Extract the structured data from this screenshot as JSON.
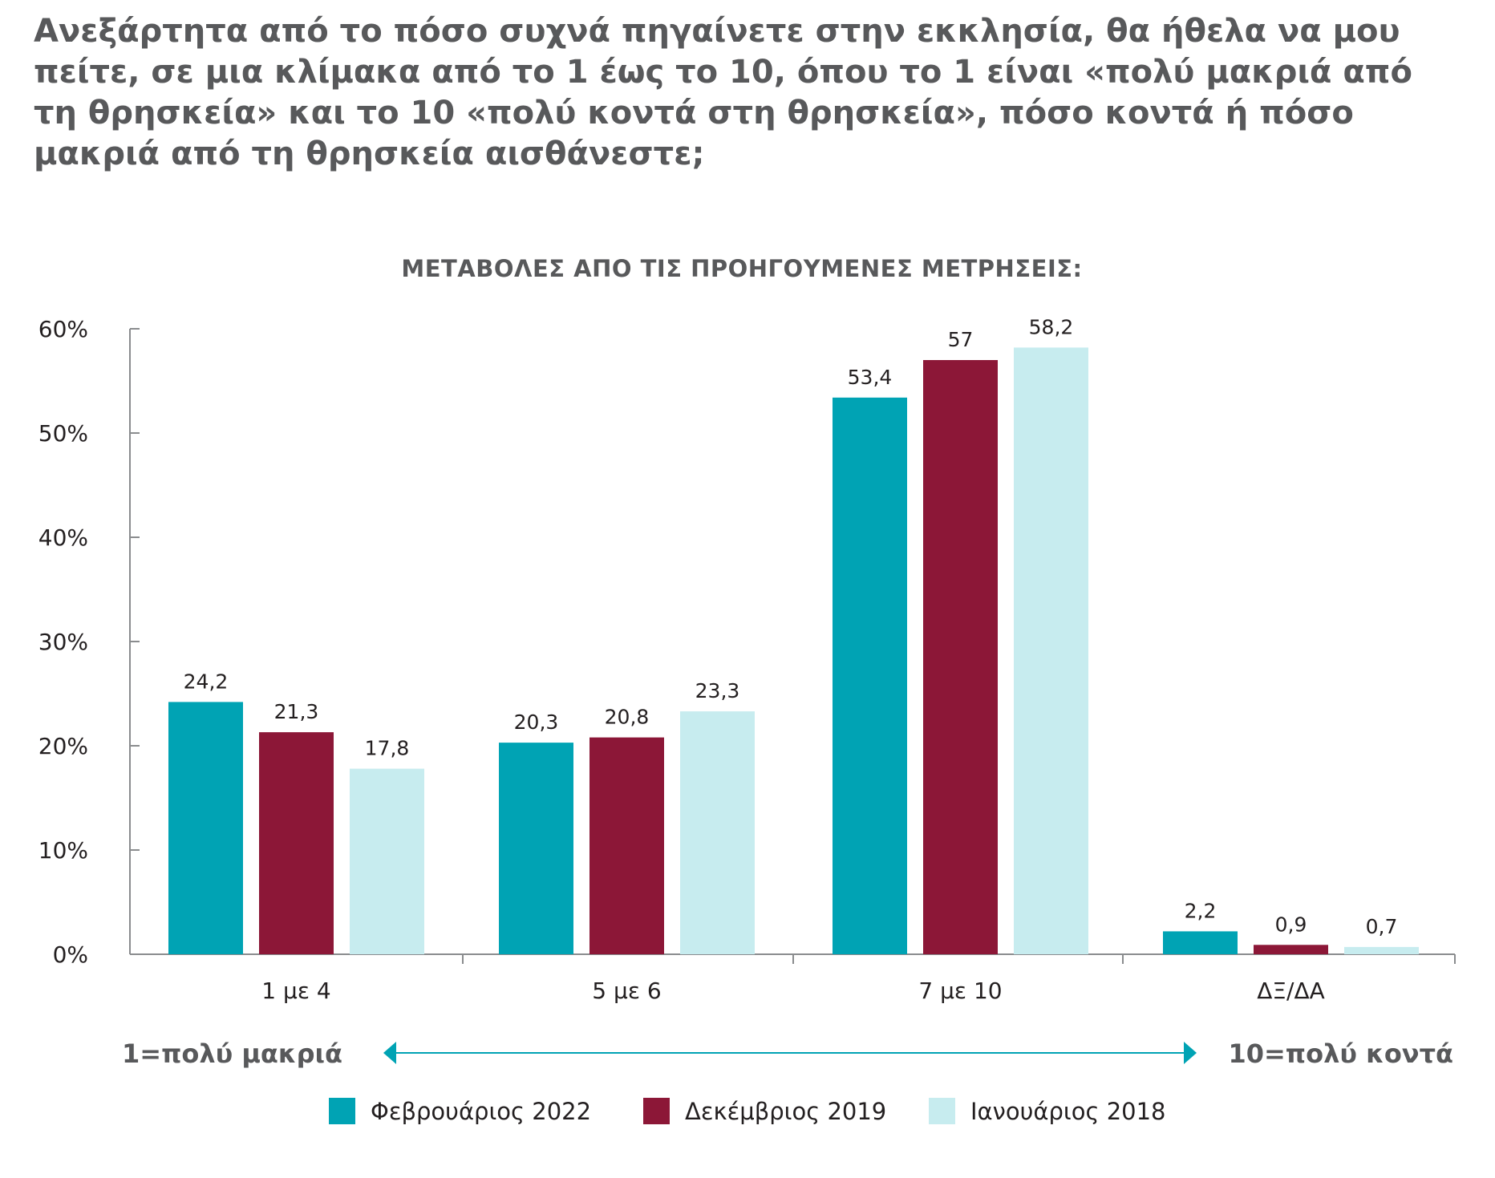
{
  "question": "Ανεξάρτητα από το πόσο συχνά πηγαίνετε στην εκκλησία, θα ήθελα να μου πείτε, σε μια κλίμακα από το 1 έως το 10, όπου το 1 είναι «πολύ μακριά από τη θρησκεία» και το 10 «πολύ κοντά στη θρησκεία», πόσο κοντά ή πόσο μακριά από τη θρησκεία αισθάνεστε;",
  "chart_data": {
    "type": "bar",
    "subtitle": "ΜΕΤΑΒΟΛΕΣ ΑΠΟ ΤΙΣ ΠΡΟΗΓΟΥΜΕΝΕΣ ΜΕΤΡΗΣΕΙΣ:",
    "categories": [
      "1 με 4",
      "5 με 6",
      "7 με 10",
      "ΔΞ/ΔΑ"
    ],
    "series": [
      {
        "name": "Φεβρουάριος 2022",
        "values": [
          24.2,
          20.3,
          53.4,
          2.2
        ],
        "labels": [
          "24,2",
          "20,3",
          "53,4",
          "2,2"
        ],
        "color": "#00a3b4"
      },
      {
        "name": "Δεκέμβριος 2019",
        "values": [
          21.3,
          20.8,
          57,
          0.9
        ],
        "labels": [
          "21,3",
          "20,8",
          "57",
          "0,9"
        ],
        "color": "#8c1737"
      },
      {
        "name": "Ιανουάριος 2018",
        "values": [
          17.8,
          23.3,
          58.2,
          0.7
        ],
        "labels": [
          "17,8",
          "23,3",
          "58,2",
          "0,7"
        ],
        "color": "#c7ecef"
      }
    ],
    "yticks": [
      "0%",
      "10%",
      "20%",
      "30%",
      "40%",
      "50%",
      "60%"
    ],
    "ylim": [
      0,
      60
    ],
    "grid": false,
    "legend_position": "bottom",
    "scale_left": "1=πολύ μακριά",
    "scale_right": "10=πολύ κοντά",
    "axis_color": "#8a8c8e",
    "arrow_color": "#00a3b4"
  }
}
